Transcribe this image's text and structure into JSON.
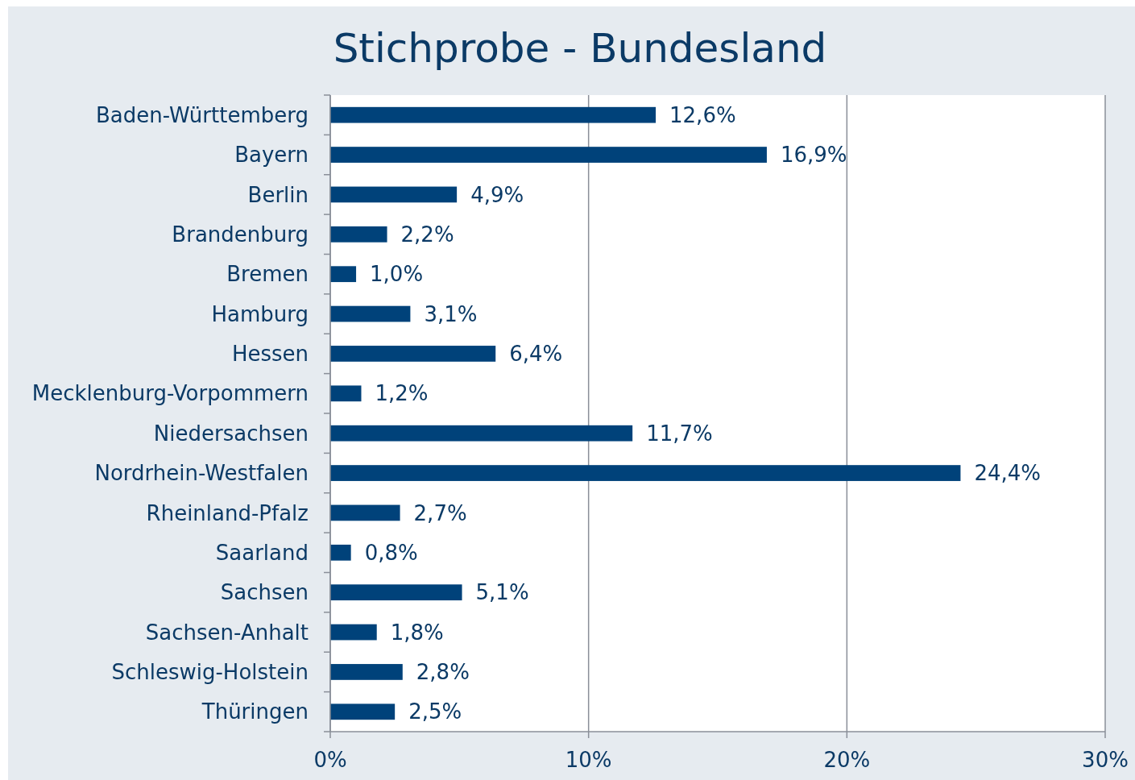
{
  "chart_data": {
    "type": "bar",
    "orientation": "horizontal",
    "title": "Stichprobe - Bundesland",
    "categories": [
      "Baden-Württemberg",
      "Bayern",
      "Berlin",
      "Brandenburg",
      "Bremen",
      "Hamburg",
      "Hessen",
      "Mecklenburg-Vorpommern",
      "Niedersachsen",
      "Nordrhein-Westfalen",
      "Rheinland-Pfalz",
      "Saarland",
      "Sachsen",
      "Sachsen-Anhalt",
      "Schleswig-Holstein",
      "Thüringen"
    ],
    "values": [
      12.6,
      16.9,
      4.9,
      2.2,
      1.0,
      3.1,
      6.4,
      1.2,
      11.7,
      24.4,
      2.7,
      0.8,
      5.1,
      1.8,
      2.8,
      2.5
    ],
    "value_labels": [
      "12,6%",
      "16,9%",
      "4,9%",
      "2,2%",
      "1,0%",
      "3,1%",
      "6,4%",
      "1,2%",
      "11,7%",
      "24,4%",
      "2,7%",
      "0,8%",
      "5,1%",
      "1,8%",
      "2,8%",
      "2,5%"
    ],
    "color": "#00427a",
    "xlim": [
      0,
      30
    ],
    "xticks": [
      {
        "value": 0,
        "label": "0%"
      },
      {
        "value": 10,
        "label": "10%"
      },
      {
        "value": 20,
        "label": "20%"
      },
      {
        "value": 30,
        "label": "30%"
      }
    ],
    "grid": "x"
  }
}
